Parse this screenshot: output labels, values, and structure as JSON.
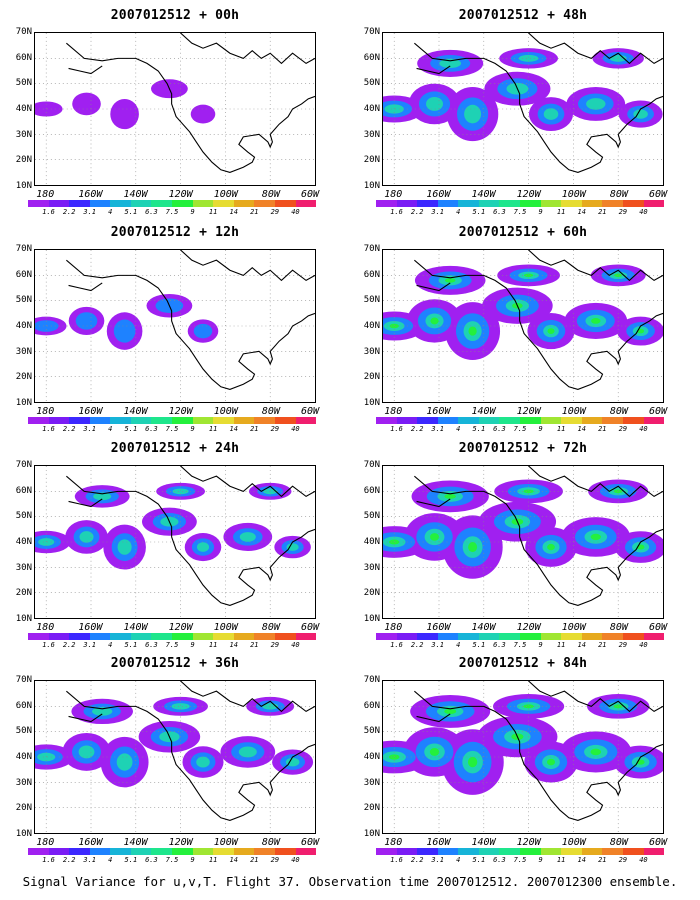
{
  "colors": [
    "#a020f0",
    "#7a1cf5",
    "#3c28ff",
    "#1e82ff",
    "#16b4d8",
    "#1ed2b4",
    "#1ee68c",
    "#24f03c",
    "#a0e632",
    "#e6dc32",
    "#e6aa1e",
    "#f08228",
    "#f0501e",
    "#f01e6e"
  ],
  "colorbar_labels": [
    "1.6",
    "2.2",
    "3.1",
    "4",
    "5.1",
    "6.3",
    "7.5",
    "9",
    "11",
    "14",
    "21",
    "29",
    "40"
  ],
  "lat_labels": [
    "70N",
    "60N",
    "50N",
    "40N",
    "30N",
    "20N",
    "10N"
  ],
  "lon_labels": [
    "180",
    "160W",
    "140W",
    "120W",
    "100W",
    "80W",
    "60W"
  ],
  "footer": "Signal Variance for u,v,T. Flight 37. Observation time 2007012512. 2007012300 ensemble.",
  "panels": [
    {
      "title": "2007012512 + 00h",
      "level": 0.3,
      "col": 0,
      "row": 0
    },
    {
      "title": "2007012512 + 48h",
      "level": 1.6,
      "col": 1,
      "row": 0
    },
    {
      "title": "2007012512 + 12h",
      "level": 0.7,
      "col": 0,
      "row": 1
    },
    {
      "title": "2007012512 + 60h",
      "level": 1.8,
      "col": 1,
      "row": 1
    },
    {
      "title": "2007012512 + 24h",
      "level": 1.1,
      "col": 0,
      "row": 2
    },
    {
      "title": "2007012512 + 72h",
      "level": 2.1,
      "col": 1,
      "row": 2
    },
    {
      "title": "2007012512 + 36h",
      "level": 1.4,
      "col": 0,
      "row": 3
    },
    {
      "title": "2007012512 + 84h",
      "level": 2.3,
      "col": 1,
      "row": 3
    }
  ]
}
